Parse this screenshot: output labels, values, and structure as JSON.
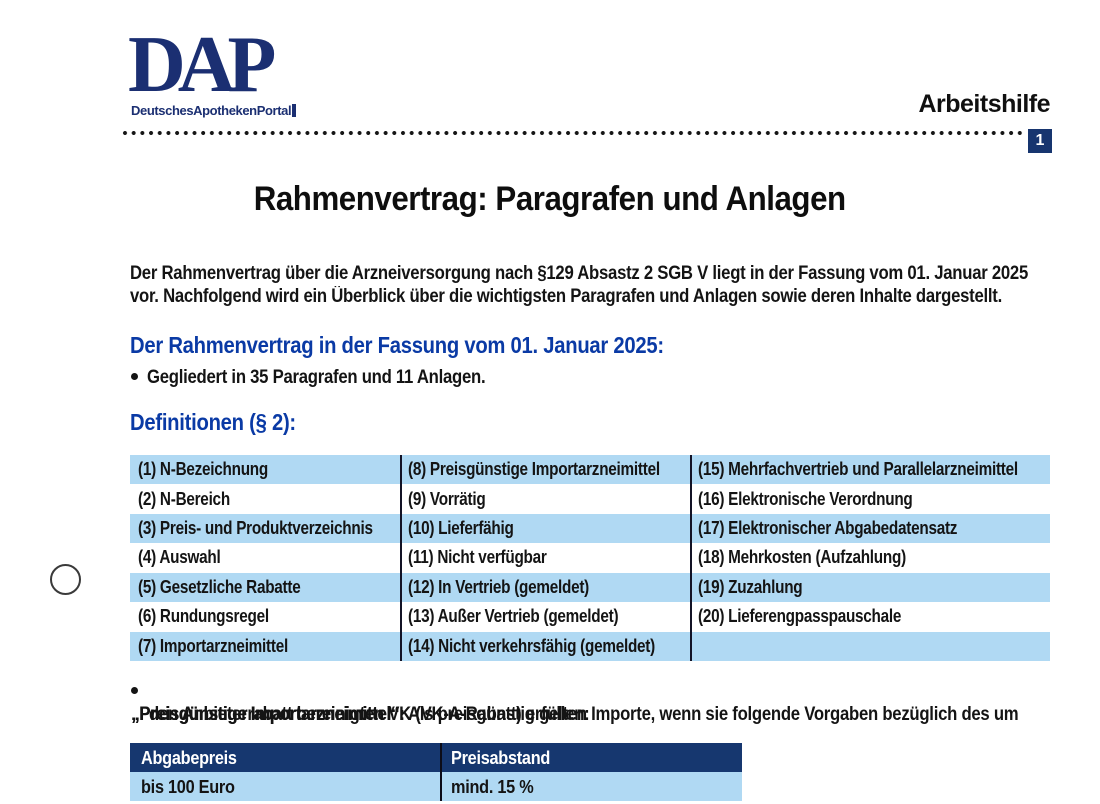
{
  "doc": {
    "logo": {
      "acronym": "DAP",
      "subtitle": "DeutschesApothekenPortal"
    },
    "header": {
      "label": "Arbeitshilfe",
      "page_badge": "1"
    },
    "title": "Rahmenvertrag: Paragrafen und Anlagen",
    "intro": {
      "line1": "Der Rahmenvertrag über die Arzneiversorgung nach §129 Absastz 2 SGB V liegt in der Fassung vom 01. Januar 2025",
      "line2": "vor. Nachfolgend wird ein Überblick über die wichtigsten Paragrafen und Anlagen sowie deren Inhalte dargestellt."
    },
    "fassung": {
      "heading": "Der Rahmenvertrag in der Fassung vom 01. Januar 2025:",
      "bullet": "Gegliedert in 35 Paragrafen und 11 Anlagen."
    },
    "definitionen": {
      "heading": "Definitionen (§ 2):",
      "rows": [
        [
          "(1) N-Bezeichnung",
          "(8) Preisgünstige Importarzneimittel",
          "(15) Mehrfachvertrieb und Parallelarzneimittel"
        ],
        [
          "(2) N-Bereich",
          "(9) Vorrätig",
          "(16) Elektronische Verordnung"
        ],
        [
          "(3) Preis- und Produktverzeichnis",
          "(10) Lieferfähig",
          "(17) Elektronischer Abgabedatensatz"
        ],
        [
          "(4) Auswahl",
          "(11) Nicht verfügbar",
          "(18) Mehrkosten (Aufzahlung)"
        ],
        [
          "(5) Gesetzliche Rabatte",
          "(12) In Vertrieb (gemeldet)",
          "(19) Zuzahlung"
        ],
        [
          "(6) Rundungsregel",
          "(13) Außer Vertrieb (gemeldet)",
          "(20) Lieferengpasspauschale"
        ],
        [
          "(7) Importarzneimittel",
          "(14) Nicht verkehrsfähig (gemeldet)",
          ""
        ]
      ]
    },
    "import_note": {
      "lead": "„Preisgünstige Importarzneimittel“:",
      "line1_rest": " Als preisgünstig gelten Importe, wenn sie folgende Vorgaben bezüglich des um",
      "line2": "den Anbieterrabatt bereinigten VK (VK-A-Rabatt) erfüllen:"
    },
    "price_table": {
      "headers": [
        "Abgabepreis",
        "Preisabstand"
      ],
      "rows": [
        [
          "bis 100 Euro",
          "mind. 15 %"
        ]
      ]
    },
    "colors": {
      "brand_navy": "#1b2f72",
      "heading_blue": "#0a3aa5",
      "row_light_blue": "#b0d9f3",
      "table_header_navy": "#16376f",
      "text_black": "#141414"
    }
  }
}
